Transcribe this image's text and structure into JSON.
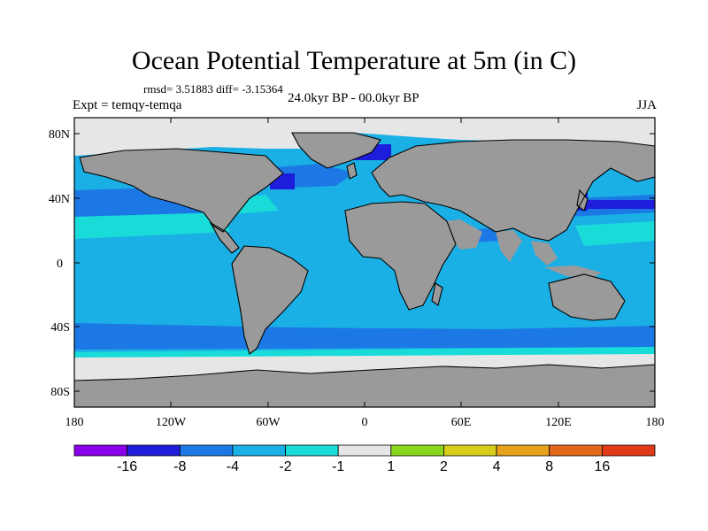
{
  "title": "Ocean Potential Temperature at 5m (in C)",
  "stats": "rmsd= 3.51883 diff= -3.15364",
  "experiment": "Expt = temqy-temqa",
  "period": "24.0kyr BP - 00.0kyr BP",
  "season": "JJA",
  "lat_ticks": [
    "80N",
    "40N",
    "0",
    "40S",
    "80S"
  ],
  "lon_ticks": [
    "180",
    "120W",
    "60W",
    "0",
    "60E",
    "120E",
    "180"
  ],
  "colorbar": {
    "colors": [
      "#8a00e8",
      "#1d1ddb",
      "#1c78e4",
      "#1ab0e6",
      "#19dcd8",
      "#e6e6e6",
      "#8ad61c",
      "#d6cc1a",
      "#e6a21a",
      "#e4681a",
      "#e03a18"
    ],
    "labels": [
      "-16",
      "-8",
      "-4",
      "-2",
      "-1",
      "1",
      "2",
      "4",
      "8",
      "16"
    ]
  },
  "colors": {
    "land": "#9a9a9a",
    "ice": "#e6e6e6",
    "ocean_main": "#1ab0e6",
    "ocean_cool": "#1c78e4",
    "ocean_warm": "#19dcd8",
    "ocean_cold": "#1d1ddb"
  }
}
